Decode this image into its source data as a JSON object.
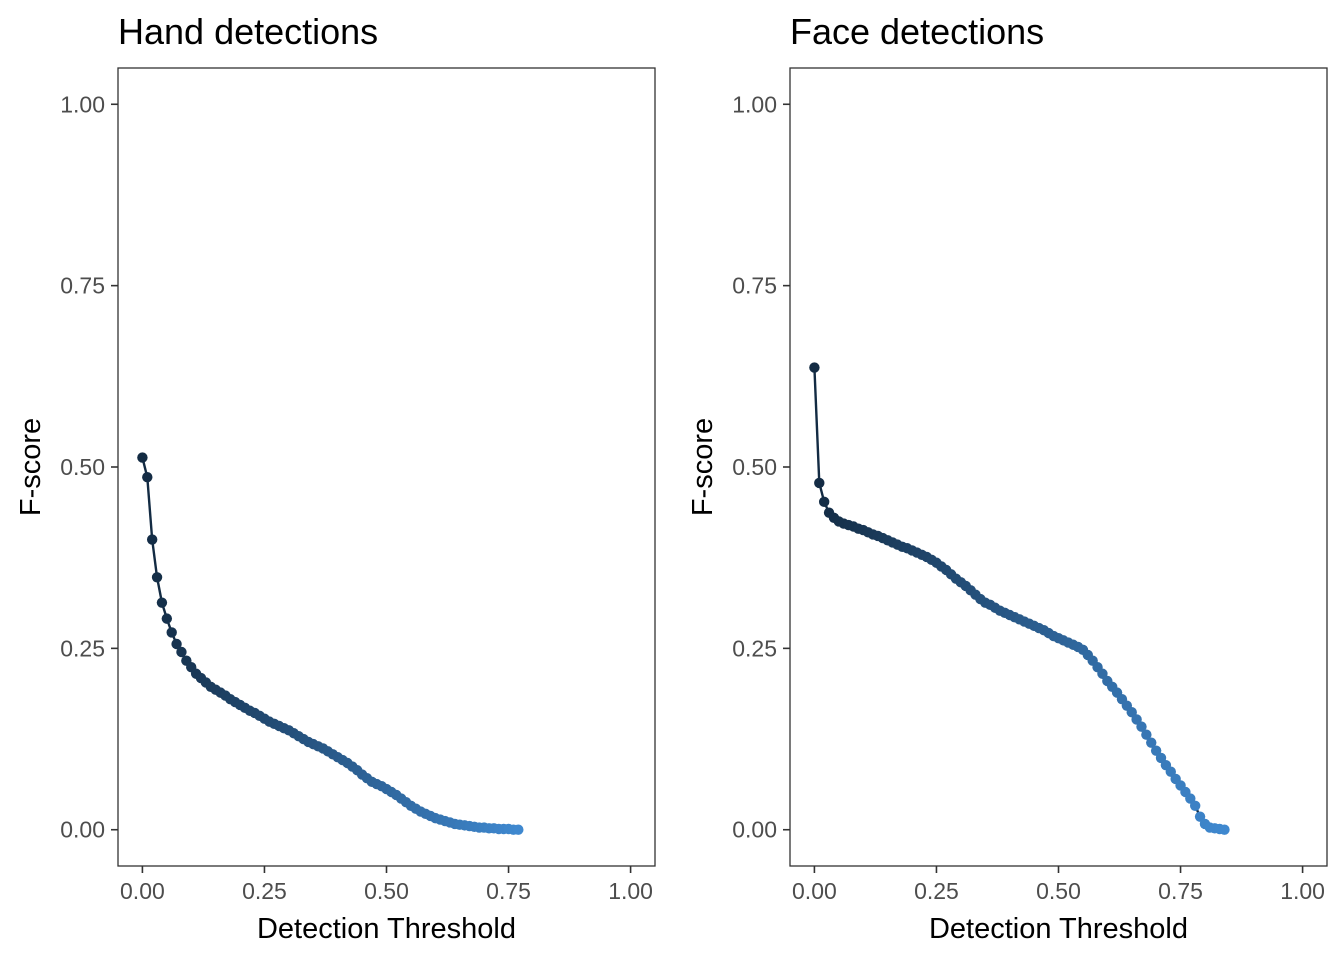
{
  "figure": {
    "colors": {
      "low": "#132B43",
      "high": "#3F88CF",
      "text": "#000000",
      "tick_text": "#4D4D4D",
      "axis": "#333333"
    }
  },
  "chart_data": [
    {
      "type": "line",
      "title": "Hand detections",
      "xlabel": "Detection Threshold",
      "ylabel": "F-score",
      "xlim": [
        -0.05,
        1.05
      ],
      "ylim": [
        -0.05,
        1.05
      ],
      "x_ticks": [
        0,
        0.25,
        0.5,
        0.75,
        1
      ],
      "x_tick_labels": [
        "0.00",
        "0.25",
        "0.50",
        "0.75",
        "1.00"
      ],
      "y_ticks": [
        0,
        0.25,
        0.5,
        0.75,
        1
      ],
      "y_tick_labels": [
        "0.00",
        "0.25",
        "0.50",
        "0.75",
        "1.00"
      ],
      "grid": false,
      "markers": true,
      "color_gradient": [
        "#132B43",
        "#3F88CF"
      ],
      "x_range": [
        0,
        0.77
      ],
      "x_step": 0.01,
      "y": [
        0.513,
        0.486,
        0.4,
        0.348,
        0.313,
        0.291,
        0.272,
        0.256,
        0.245,
        0.233,
        0.224,
        0.215,
        0.209,
        0.203,
        0.197,
        0.193,
        0.189,
        0.185,
        0.18,
        0.176,
        0.172,
        0.168,
        0.164,
        0.161,
        0.157,
        0.153,
        0.149,
        0.146,
        0.143,
        0.14,
        0.137,
        0.133,
        0.129,
        0.125,
        0.121,
        0.118,
        0.115,
        0.112,
        0.108,
        0.104,
        0.1,
        0.096,
        0.092,
        0.087,
        0.082,
        0.076,
        0.071,
        0.066,
        0.063,
        0.06,
        0.056,
        0.052,
        0.048,
        0.043,
        0.038,
        0.033,
        0.029,
        0.025,
        0.022,
        0.019,
        0.016,
        0.014,
        0.012,
        0.01,
        0.008,
        0.007,
        0.006,
        0.005,
        0.004,
        0.003,
        0.003,
        0.002,
        0.002,
        0.001,
        0.001,
        0.001,
        0.0,
        0.0
      ]
    },
    {
      "type": "line",
      "title": "Face detections",
      "xlabel": "Detection Threshold",
      "ylabel": "F-score",
      "xlim": [
        -0.05,
        1.05
      ],
      "ylim": [
        -0.05,
        1.05
      ],
      "x_ticks": [
        0,
        0.25,
        0.5,
        0.75,
        1
      ],
      "x_tick_labels": [
        "0.00",
        "0.25",
        "0.50",
        "0.75",
        "1.00"
      ],
      "y_ticks": [
        0,
        0.25,
        0.5,
        0.75,
        1
      ],
      "y_tick_labels": [
        "0.00",
        "0.25",
        "0.50",
        "0.75",
        "1.00"
      ],
      "grid": false,
      "markers": true,
      "color_gradient": [
        "#132B43",
        "#3F88CF"
      ],
      "x_range": [
        0,
        0.84
      ],
      "x_step": 0.01,
      "y": [
        0.637,
        0.478,
        0.452,
        0.437,
        0.43,
        0.425,
        0.422,
        0.42,
        0.418,
        0.415,
        0.413,
        0.41,
        0.407,
        0.405,
        0.402,
        0.399,
        0.396,
        0.393,
        0.39,
        0.388,
        0.385,
        0.382,
        0.379,
        0.376,
        0.372,
        0.368,
        0.363,
        0.358,
        0.352,
        0.346,
        0.341,
        0.336,
        0.33,
        0.324,
        0.318,
        0.313,
        0.31,
        0.306,
        0.302,
        0.299,
        0.296,
        0.293,
        0.29,
        0.287,
        0.284,
        0.281,
        0.278,
        0.275,
        0.271,
        0.267,
        0.264,
        0.261,
        0.258,
        0.255,
        0.252,
        0.248,
        0.241,
        0.233,
        0.224,
        0.215,
        0.205,
        0.197,
        0.189,
        0.18,
        0.171,
        0.162,
        0.152,
        0.142,
        0.131,
        0.12,
        0.109,
        0.099,
        0.089,
        0.08,
        0.07,
        0.061,
        0.052,
        0.043,
        0.033,
        0.018,
        0.008,
        0.003,
        0.002,
        0.001,
        0.0
      ]
    }
  ]
}
